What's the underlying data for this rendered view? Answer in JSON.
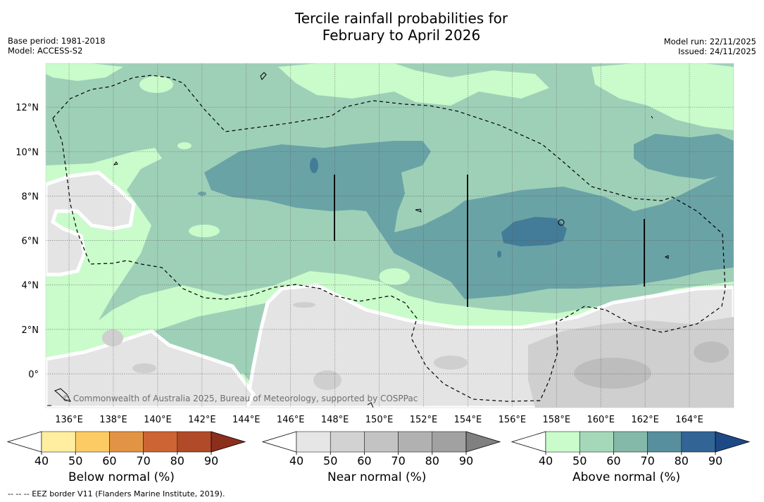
{
  "title": {
    "line1": "Tercile rainfall probabilities for",
    "line2": "February to April 2026"
  },
  "meta": {
    "base_period": "Base period: 1981-2018",
    "model": "Model: ACCESS-S2",
    "model_run": "Model run: 22/11/2025",
    "issued": "Issued: 24/11/2025"
  },
  "map": {
    "lon_labels": [
      "136°E",
      "138°E",
      "140°E",
      "142°E",
      "144°E",
      "146°E",
      "148°E",
      "150°E",
      "152°E",
      "154°E",
      "156°E",
      "158°E",
      "160°E",
      "162°E",
      "164°E"
    ],
    "lat_labels": [
      "12°N",
      "10°N",
      "8°N",
      "6°N",
      "4°N",
      "2°N",
      "0°"
    ],
    "credit": "© Commonwealth of Australia 2025, Bureau of Meteorology, supported by COSPPac"
  },
  "colorbars": {
    "ticks": [
      "40",
      "50",
      "60",
      "70",
      "80",
      "90"
    ],
    "below": {
      "label": "Below normal (%)",
      "colors": [
        "#ffeea0",
        "#fdcb64",
        "#e29444",
        "#cd6434",
        "#b04a28",
        "#8c2e1c"
      ]
    },
    "near": {
      "label": "Near normal (%)",
      "colors": [
        "#e6e6e6",
        "#d2d2d2",
        "#c3c3c3",
        "#b1b1b1",
        "#a1a1a1",
        "#808080"
      ]
    },
    "above": {
      "label": "Above normal (%)",
      "colors": [
        "#c9fbcb",
        "#a5d8b8",
        "#84b8a8",
        "#588f9e",
        "#336496",
        "#1d4a87"
      ]
    }
  },
  "footnote": "--  --  -- EEZ border V11 (Flanders Marine Institute, 2019).",
  "colors": {
    "green_40": "#c9fbcb",
    "green_50": "#9ed0b8",
    "teal_60": "#6aa3a6",
    "blue_70": "#437c98",
    "grey_40": "#e4e4e4",
    "grey_50": "#cfcfcf"
  }
}
